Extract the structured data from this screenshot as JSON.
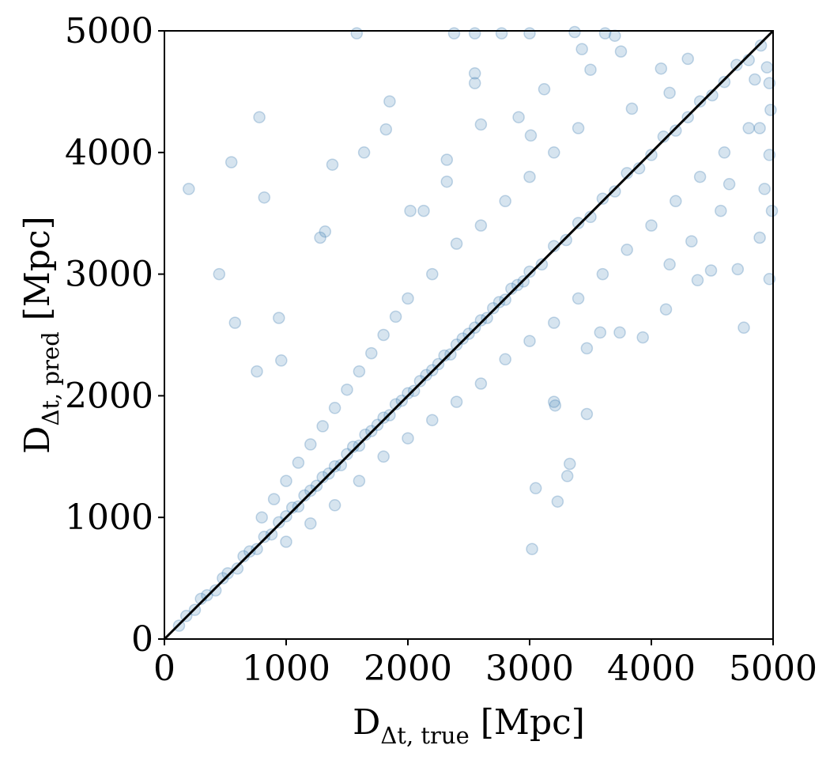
{
  "chart_data": {
    "type": "scatter",
    "title": "",
    "xlabel": {
      "main": "D",
      "sub": "Δt, true",
      "unit": " [Mpc]"
    },
    "ylabel": {
      "main": "D",
      "sub": "Δt, pred",
      "unit": " [Mpc]"
    },
    "xlim": [
      0,
      5000
    ],
    "ylim": [
      0,
      5000
    ],
    "x_ticks": [
      "0",
      "1000",
      "2000",
      "3000",
      "4000",
      "5000"
    ],
    "y_ticks": [
      "0",
      "1000",
      "2000",
      "3000",
      "4000",
      "5000"
    ],
    "grid": false,
    "legend": "none",
    "marker_color": "#4682b4",
    "marker_alpha": 0.22,
    "reference_line": {
      "x": [
        0,
        5000
      ],
      "y": [
        0,
        5000
      ],
      "color": "#000000"
    },
    "series": [
      {
        "points": [
          [
            120,
            110
          ],
          [
            180,
            190
          ],
          [
            250,
            240
          ],
          [
            300,
            330
          ],
          [
            350,
            360
          ],
          [
            420,
            400
          ],
          [
            480,
            500
          ],
          [
            520,
            540
          ],
          [
            600,
            580
          ],
          [
            650,
            680
          ],
          [
            700,
            720
          ],
          [
            760,
            740
          ],
          [
            820,
            840
          ],
          [
            880,
            860
          ],
          [
            940,
            960
          ],
          [
            1000,
            1010
          ],
          [
            1050,
            1080
          ],
          [
            1100,
            1090
          ],
          [
            1150,
            1180
          ],
          [
            1200,
            1220
          ],
          [
            1250,
            1260
          ],
          [
            1300,
            1330
          ],
          [
            1350,
            1360
          ],
          [
            1400,
            1420
          ],
          [
            1450,
            1430
          ],
          [
            1500,
            1520
          ],
          [
            1550,
            1580
          ],
          [
            1600,
            1590
          ],
          [
            1650,
            1680
          ],
          [
            1700,
            1710
          ],
          [
            1750,
            1760
          ],
          [
            1800,
            1820
          ],
          [
            1850,
            1840
          ],
          [
            1900,
            1930
          ],
          [
            1950,
            1960
          ],
          [
            2000,
            2020
          ],
          [
            2050,
            2040
          ],
          [
            2100,
            2120
          ],
          [
            2150,
            2170
          ],
          [
            2200,
            2210
          ],
          [
            2250,
            2260
          ],
          [
            2300,
            2330
          ],
          [
            2350,
            2340
          ],
          [
            2400,
            2420
          ],
          [
            2450,
            2470
          ],
          [
            2500,
            2510
          ],
          [
            2550,
            2560
          ],
          [
            2600,
            2620
          ],
          [
            2650,
            2640
          ],
          [
            2700,
            2720
          ],
          [
            2750,
            2770
          ],
          [
            2800,
            2790
          ],
          [
            2850,
            2880
          ],
          [
            2900,
            2910
          ],
          [
            2950,
            2940
          ],
          [
            3000,
            3020
          ],
          [
            3100,
            3080
          ],
          [
            3200,
            3230
          ],
          [
            3300,
            3280
          ],
          [
            3400,
            3420
          ],
          [
            3500,
            3470
          ],
          [
            3600,
            3620
          ],
          [
            3700,
            3680
          ],
          [
            3800,
            3830
          ],
          [
            3900,
            3870
          ],
          [
            4000,
            3980
          ],
          [
            4100,
            4130
          ],
          [
            4200,
            4180
          ],
          [
            4300,
            4290
          ],
          [
            4400,
            4420
          ],
          [
            4500,
            4470
          ],
          [
            4600,
            4580
          ],
          [
            4700,
            4720
          ],
          [
            4800,
            4760
          ],
          [
            4900,
            4880
          ],
          [
            4950,
            4700
          ],
          [
            800,
            1000
          ],
          [
            900,
            1150
          ],
          [
            1000,
            1300
          ],
          [
            1100,
            1450
          ],
          [
            1200,
            1600
          ],
          [
            1300,
            1750
          ],
          [
            1400,
            1900
          ],
          [
            1500,
            2050
          ],
          [
            1600,
            2200
          ],
          [
            1700,
            2350
          ],
          [
            1800,
            2500
          ],
          [
            1900,
            2650
          ],
          [
            2000,
            2800
          ],
          [
            2200,
            3000
          ],
          [
            2400,
            3250
          ],
          [
            2600,
            3400
          ],
          [
            2800,
            3600
          ],
          [
            3000,
            3800
          ],
          [
            3200,
            4000
          ],
          [
            3400,
            4200
          ],
          [
            1000,
            800
          ],
          [
            1200,
            950
          ],
          [
            1400,
            1100
          ],
          [
            1600,
            1300
          ],
          [
            1800,
            1500
          ],
          [
            2000,
            1650
          ],
          [
            2200,
            1800
          ],
          [
            2400,
            1950
          ],
          [
            2600,
            2100
          ],
          [
            2800,
            2300
          ],
          [
            3000,
            2450
          ],
          [
            3200,
            2600
          ],
          [
            3400,
            2800
          ],
          [
            3600,
            3000
          ],
          [
            3800,
            3200
          ],
          [
            4000,
            3400
          ],
          [
            4200,
            3600
          ],
          [
            4400,
            3800
          ],
          [
            4600,
            4000
          ],
          [
            4800,
            4200
          ],
          [
            200,
            3700
          ],
          [
            450,
            3000
          ],
          [
            550,
            3920
          ],
          [
            580,
            2600
          ],
          [
            780,
            4290
          ],
          [
            820,
            3630
          ],
          [
            760,
            2200
          ],
          [
            940,
            2640
          ],
          [
            960,
            2290
          ],
          [
            1380,
            3900
          ],
          [
            1320,
            3350
          ],
          [
            1280,
            3300
          ],
          [
            1580,
            4980
          ],
          [
            1640,
            4000
          ],
          [
            1850,
            4420
          ],
          [
            1820,
            4190
          ],
          [
            2020,
            3520
          ],
          [
            2130,
            3520
          ],
          [
            2320,
            3760
          ],
          [
            2320,
            3940
          ],
          [
            2550,
            4650
          ],
          [
            2550,
            4570
          ],
          [
            2600,
            4230
          ],
          [
            2380,
            4980
          ],
          [
            2550,
            4980
          ],
          [
            2770,
            4980
          ],
          [
            3000,
            4980
          ],
          [
            3120,
            4520
          ],
          [
            2910,
            4290
          ],
          [
            3010,
            4140
          ],
          [
            3370,
            4990
          ],
          [
            3430,
            4850
          ],
          [
            3620,
            4980
          ],
          [
            3700,
            4960
          ],
          [
            3750,
            4830
          ],
          [
            3500,
            4680
          ],
          [
            3840,
            4360
          ],
          [
            4080,
            4690
          ],
          [
            4150,
            4490
          ],
          [
            4300,
            4770
          ],
          [
            3020,
            740
          ],
          [
            3050,
            1240
          ],
          [
            3230,
            1130
          ],
          [
            3330,
            1440
          ],
          [
            3310,
            1340
          ],
          [
            3470,
            1850
          ],
          [
            3200,
            1950
          ],
          [
            3210,
            1920
          ],
          [
            3470,
            2390
          ],
          [
            3580,
            2520
          ],
          [
            3740,
            2520
          ],
          [
            3930,
            2480
          ],
          [
            4120,
            2710
          ],
          [
            4380,
            2950
          ],
          [
            4490,
            3030
          ],
          [
            4710,
            3040
          ],
          [
            4760,
            2560
          ],
          [
            4890,
            3300
          ],
          [
            4970,
            2960
          ],
          [
            4990,
            3520
          ],
          [
            4150,
            3080
          ],
          [
            4330,
            3270
          ],
          [
            4570,
            3520
          ],
          [
            4640,
            3740
          ],
          [
            4930,
            3700
          ],
          [
            4970,
            3980
          ],
          [
            4890,
            4200
          ],
          [
            4980,
            4350
          ],
          [
            4970,
            4570
          ],
          [
            4850,
            4600
          ]
        ]
      }
    ]
  }
}
